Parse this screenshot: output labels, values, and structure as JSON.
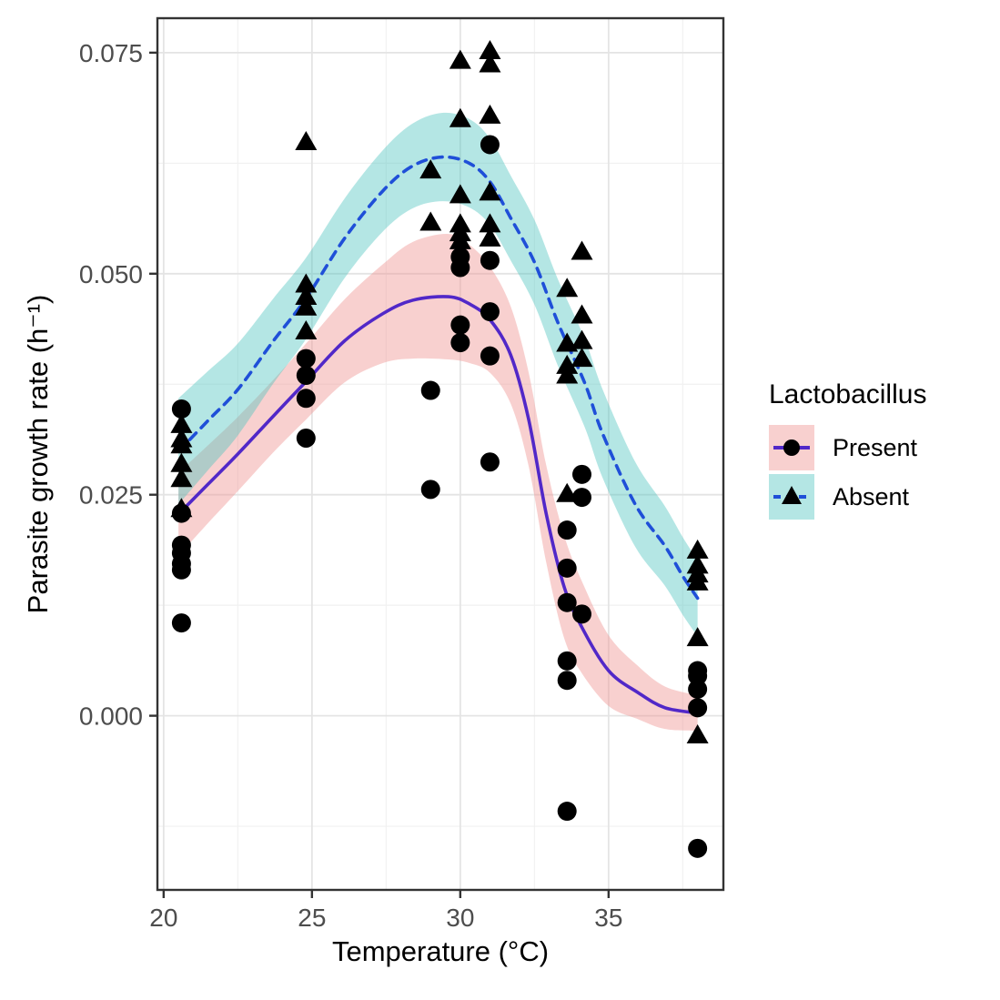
{
  "chart_data": {
    "type": "scatter",
    "title": "",
    "xlabel": "Temperature (°C)",
    "ylabel": "Parasite growth rate (h⁻¹)",
    "xlim": [
      19.79,
      38.87
    ],
    "ylim": [
      -0.0197,
      0.0789
    ],
    "grid": "on",
    "x_ticks": {
      "values": [
        20,
        25,
        30,
        35
      ],
      "labels": [
        "20",
        "25",
        "30",
        "35"
      ],
      "minor": [
        22.5,
        27.5,
        32.5,
        37.5
      ]
    },
    "y_ticks": {
      "values": [
        0.0,
        0.025,
        0.05,
        0.075
      ],
      "labels": [
        "0.000",
        "0.025",
        "0.050",
        "0.075"
      ],
      "minor": [
        -0.0125,
        0.0125,
        0.0375,
        0.0625
      ]
    },
    "legend": {
      "title": "Lactobacillus",
      "position": "right",
      "entries": [
        {
          "label": "Present",
          "marker": "circle",
          "line": "solid"
        },
        {
          "label": "Absent",
          "marker": "triangle",
          "line": "dashed"
        }
      ]
    },
    "colors": {
      "present_line": "#5128c8",
      "present_ribbon": "rgba(239,150,148,0.45)",
      "absent_line": "#1f4fd8",
      "absent_ribbon": "rgba(77,195,190,0.42)",
      "marker": "#000000",
      "grid_major": "#e4e4e4",
      "grid_minor": "#f1f1f1",
      "panel_border": "#333333",
      "tick_label": "#4d4d4d"
    },
    "series": [
      {
        "name": "Present",
        "marker": "circle",
        "line_style": "solid",
        "points": [
          [
            20.6,
            0.0347
          ],
          [
            20.6,
            0.0229
          ],
          [
            20.6,
            0.0193
          ],
          [
            20.6,
            0.0184
          ],
          [
            20.6,
            0.0172
          ],
          [
            20.6,
            0.0165
          ],
          [
            20.6,
            0.0105
          ],
          [
            24.8,
            0.0404
          ],
          [
            24.8,
            0.0385
          ],
          [
            24.8,
            0.0359
          ],
          [
            24.8,
            0.0314
          ],
          [
            29.0,
            0.0368
          ],
          [
            29.0,
            0.0256
          ],
          [
            30.0,
            0.0519
          ],
          [
            30.0,
            0.0507
          ],
          [
            30.0,
            0.0442
          ],
          [
            30.0,
            0.0422
          ],
          [
            31.0,
            0.0646
          ],
          [
            31.0,
            0.0515
          ],
          [
            31.0,
            0.0457
          ],
          [
            31.0,
            0.0407
          ],
          [
            31.0,
            0.0287
          ],
          [
            33.6,
            0.021
          ],
          [
            33.6,
            0.0167
          ],
          [
            33.6,
            0.0128
          ],
          [
            33.6,
            0.0062
          ],
          [
            33.6,
            0.004
          ],
          [
            33.6,
            -0.0108
          ],
          [
            34.1,
            0.0273
          ],
          [
            34.1,
            0.0247
          ],
          [
            34.1,
            0.0115
          ],
          [
            38.0,
            0.0051
          ],
          [
            38.0,
            0.0045
          ],
          [
            38.0,
            0.003
          ],
          [
            38.0,
            0.0009
          ],
          [
            38.0,
            -0.015
          ]
        ],
        "trend": [
          [
            20.5,
            0.0228
          ],
          [
            21.5,
            0.0262
          ],
          [
            22.5,
            0.0296
          ],
          [
            23.7,
            0.0339
          ],
          [
            24.8,
            0.0378
          ],
          [
            26.1,
            0.0424
          ],
          [
            27.4,
            0.0455
          ],
          [
            28.4,
            0.047
          ],
          [
            29.6,
            0.0474
          ],
          [
            30.3,
            0.0466
          ],
          [
            31.0,
            0.0448
          ],
          [
            31.7,
            0.0408
          ],
          [
            32.3,
            0.0336
          ],
          [
            32.9,
            0.0228
          ],
          [
            33.5,
            0.0146
          ],
          [
            34.1,
            0.01
          ],
          [
            35.0,
            0.0051
          ],
          [
            36.0,
            0.0026
          ],
          [
            36.9,
            0.0009
          ],
          [
            38.0,
            0.0003
          ]
        ],
        "ribbon_halfwidth": [
          0.0047,
          0.0044,
          0.0042,
          0.0041,
          0.0043,
          0.0047,
          0.0056,
          0.0066,
          0.0071,
          0.0067,
          0.006,
          0.0055,
          0.0053,
          0.0055,
          0.0058,
          0.0052,
          0.004,
          0.003,
          0.0024,
          0.002
        ]
      },
      {
        "name": "Absent",
        "marker": "triangle",
        "line_style": "dashed",
        "points": [
          [
            20.6,
            0.0329
          ],
          [
            20.6,
            0.0313
          ],
          [
            20.6,
            0.0306
          ],
          [
            20.6,
            0.0285
          ],
          [
            20.6,
            0.0268
          ],
          [
            20.6,
            0.0234
          ],
          [
            24.8,
            0.0649
          ],
          [
            24.8,
            0.0488
          ],
          [
            24.8,
            0.0474
          ],
          [
            24.8,
            0.0462
          ],
          [
            24.8,
            0.0435
          ],
          [
            29.0,
            0.0617
          ],
          [
            29.0,
            0.0558
          ],
          [
            30.0,
            0.0741
          ],
          [
            30.0,
            0.0675
          ],
          [
            30.0,
            0.0589
          ],
          [
            30.0,
            0.0556
          ],
          [
            30.0,
            0.0546
          ],
          [
            30.0,
            0.0537
          ],
          [
            31.0,
            0.0752
          ],
          [
            31.0,
            0.0737
          ],
          [
            31.0,
            0.0679
          ],
          [
            31.0,
            0.0592
          ],
          [
            31.0,
            0.0556
          ],
          [
            31.0,
            0.054
          ],
          [
            33.6,
            0.0483
          ],
          [
            33.6,
            0.0421
          ],
          [
            33.6,
            0.0396
          ],
          [
            33.6,
            0.0385
          ],
          [
            33.6,
            0.0251
          ],
          [
            34.1,
            0.0525
          ],
          [
            34.1,
            0.0453
          ],
          [
            34.1,
            0.0424
          ],
          [
            34.1,
            0.0404
          ],
          [
            38.0,
            0.0187
          ],
          [
            38.0,
            0.017
          ],
          [
            38.0,
            0.016
          ],
          [
            38.0,
            0.0151
          ],
          [
            38.0,
            0.0088
          ],
          [
            38.0,
            -0.0022
          ]
        ],
        "trend": [
          [
            20.5,
            0.0299
          ],
          [
            21.5,
            0.0334
          ],
          [
            22.5,
            0.0369
          ],
          [
            23.7,
            0.0424
          ],
          [
            24.8,
            0.0472
          ],
          [
            26.1,
            0.054
          ],
          [
            27.4,
            0.0594
          ],
          [
            28.4,
            0.0622
          ],
          [
            29.4,
            0.0632
          ],
          [
            30.3,
            0.0625
          ],
          [
            31.0,
            0.0604
          ],
          [
            31.7,
            0.0563
          ],
          [
            32.5,
            0.0513
          ],
          [
            33.3,
            0.0444
          ],
          [
            34.2,
            0.0376
          ],
          [
            34.8,
            0.0319
          ],
          [
            35.9,
            0.0239
          ],
          [
            36.9,
            0.0192
          ],
          [
            37.5,
            0.0158
          ],
          [
            38.0,
            0.0133
          ]
        ],
        "ribbon_halfwidth": [
          0.006,
          0.0056,
          0.0052,
          0.0048,
          0.0046,
          0.0045,
          0.0046,
          0.0048,
          0.005,
          0.005,
          0.0049,
          0.0048,
          0.0048,
          0.0049,
          0.005,
          0.005,
          0.0048,
          0.0045,
          0.0044,
          0.0043
        ]
      }
    ]
  }
}
